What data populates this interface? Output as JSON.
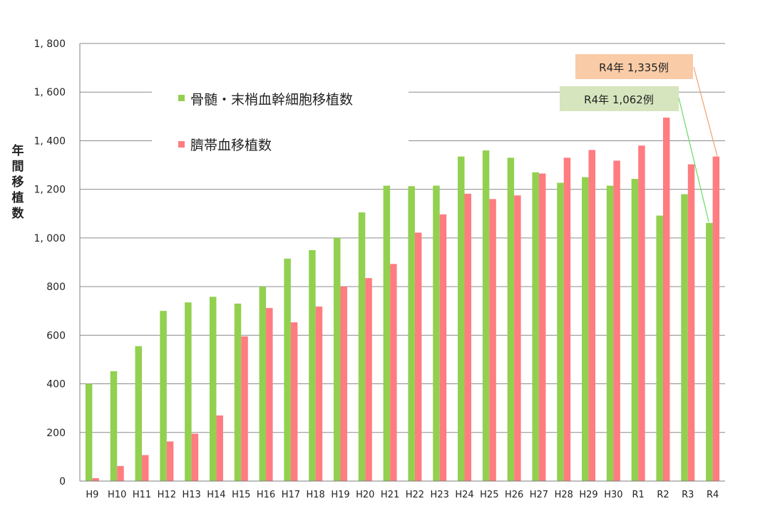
{
  "chart_data": {
    "type": "bar",
    "ylabel": "年間移植数",
    "ylim": [
      0,
      1800
    ],
    "yticks": [
      0,
      200,
      400,
      600,
      800,
      1000,
      1200,
      1400,
      1600,
      1800
    ],
    "ytick_labels": [
      "0",
      "200",
      "400",
      "600",
      "800",
      "1, 000",
      "1, 200",
      "1, 400",
      "1, 600",
      "1, 800"
    ],
    "grid": true,
    "legend_position": "top-left",
    "categories": [
      "H9",
      "H10",
      "H11",
      "H12",
      "H13",
      "H14",
      "H15",
      "H16",
      "H17",
      "H18",
      "H19",
      "H20",
      "H21",
      "H22",
      "H23",
      "H24",
      "H25",
      "H26",
      "H27",
      "H28",
      "H29",
      "H30",
      "R1",
      "R2",
      "R3",
      "R4"
    ],
    "series": [
      {
        "name": "骨髄・末梢血幹細胞移植数",
        "color": "#92d050",
        "values": [
          400,
          452,
          555,
          700,
          735,
          758,
          730,
          800,
          915,
          950,
          1000,
          1105,
          1215,
          1213,
          1215,
          1335,
          1360,
          1330,
          1270,
          1227,
          1250,
          1215,
          1243,
          1092,
          1180,
          1062
        ]
      },
      {
        "name": "臍帯血移植数",
        "color": "#ff7c80",
        "values": [
          12,
          62,
          107,
          163,
          195,
          270,
          595,
          712,
          653,
          718,
          800,
          835,
          893,
          1022,
          1097,
          1182,
          1160,
          1175,
          1265,
          1330,
          1362,
          1318,
          1380,
          1495,
          1303,
          1335
        ]
      }
    ],
    "annotations": [
      {
        "id": "cord",
        "text": "R4年 1,335例",
        "target_category": "R4",
        "target_series": 1,
        "box_color": "#f9cba6",
        "line_color": "#f0a070"
      },
      {
        "id": "marrow",
        "text": "R4年 1,062例",
        "target_category": "R4",
        "target_series": 0,
        "box_color": "#d6e5bd",
        "line_color": "#66dd66"
      }
    ]
  }
}
